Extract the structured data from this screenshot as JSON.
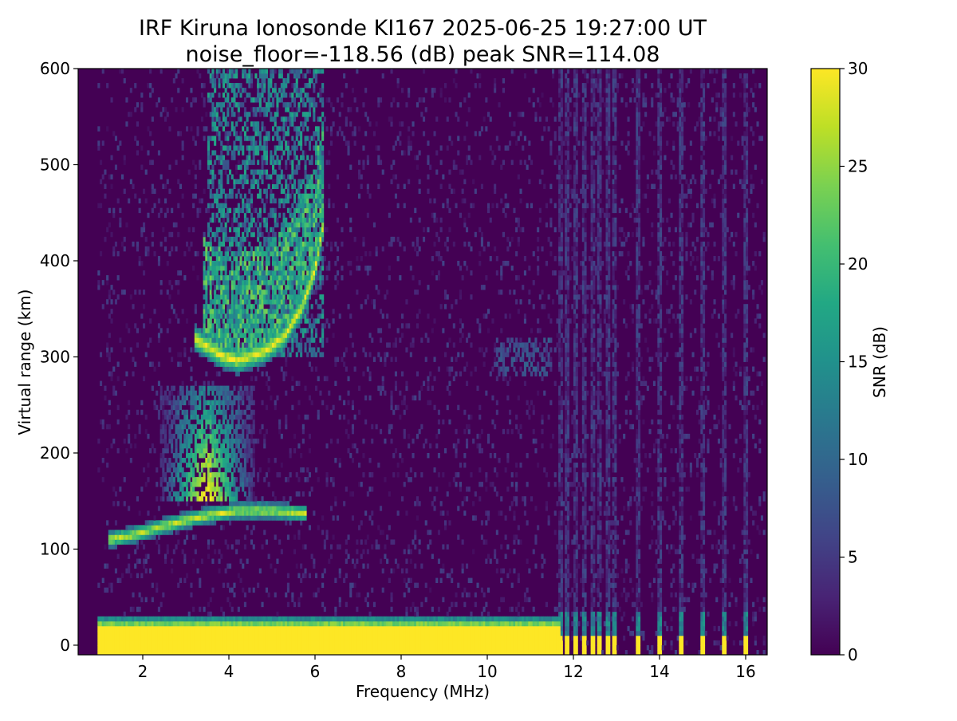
{
  "chart_data": {
    "type": "heatmap",
    "title": "IRF Kiruna Ionosonde KI167 2025-06-25 19:27:00  UT",
    "subtitle": "noise_floor=-118.56 (dB) peak SNR=114.08",
    "xlabel": "Frequency (MHz)",
    "ylabel": "Virtual range (km)",
    "xlim": [
      0.5,
      16.5
    ],
    "ylim": [
      -10,
      600
    ],
    "xticks": [
      2,
      4,
      6,
      8,
      10,
      12,
      14,
      16
    ],
    "yticks": [
      0,
      100,
      200,
      300,
      400,
      500,
      600
    ],
    "grid": false,
    "colormap": "viridis",
    "colorbar": {
      "label": "SNR (dB)",
      "range": [
        0,
        30
      ],
      "ticks": [
        0,
        5,
        10,
        15,
        20,
        25,
        30
      ]
    },
    "frequency_range_mhz": [
      0.95,
      16.45
    ],
    "range_km": [
      -10,
      600
    ],
    "features": [
      {
        "name": "ground clutter band",
        "f_range": [
          0.95,
          11.7
        ],
        "h_range": [
          -10,
          30
        ],
        "snr": 30
      },
      {
        "name": "E / Es layer trace",
        "points": [
          [
            1.2,
            110
          ],
          [
            1.8,
            115
          ],
          [
            2.4,
            123
          ],
          [
            3.0,
            130
          ],
          [
            3.6,
            136
          ],
          [
            4.2,
            140
          ],
          [
            5.0,
            140
          ],
          [
            5.8,
            137
          ]
        ],
        "snr": 26
      },
      {
        "name": "diffuse echo region",
        "f_range": [
          2.4,
          4.6
        ],
        "h_range": [
          150,
          270
        ],
        "snr": 20
      },
      {
        "name": "F layer trace",
        "points": [
          [
            3.2,
            320
          ],
          [
            3.8,
            302
          ],
          [
            4.2,
            296
          ],
          [
            4.8,
            305
          ],
          [
            5.3,
            322
          ],
          [
            5.7,
            352
          ],
          [
            6.0,
            390
          ],
          [
            6.2,
            440
          ]
        ],
        "snr": 28
      },
      {
        "name": "F layer spread",
        "f_range": [
          3.5,
          6.2
        ],
        "h_range": [
          300,
          600
        ],
        "snr": 14
      },
      {
        "name": "oblique echoes",
        "f_range": [
          10.2,
          11.5
        ],
        "h_range": [
          280,
          320
        ],
        "snr": 8
      }
    ],
    "pulsed_stripes_mhz": [
      11.7,
      11.85,
      12.05,
      12.25,
      12.45,
      12.6,
      12.8,
      12.95,
      13.5,
      14.0,
      14.5,
      15.0,
      15.5,
      16.0
    ]
  }
}
